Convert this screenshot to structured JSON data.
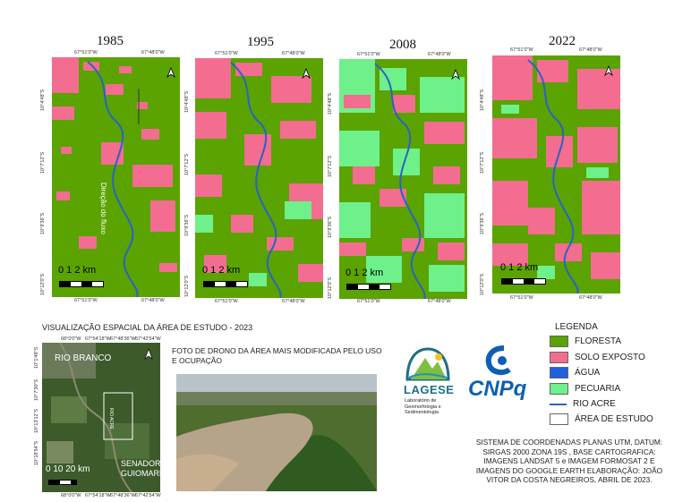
{
  "maps": [
    {
      "year": "1985",
      "coords": [
        "67°51'0\"W",
        "67°48'0\"W",
        "10°4'48\"S",
        "10°7'12\"S",
        "10°9'36\"S",
        "10°12'0\"S"
      ],
      "scale": "0  1  2 km",
      "flow_label": "Direção do fluxo"
    },
    {
      "year": "1995",
      "coords": [
        "67°51'0\"W",
        "67°48'0\"W",
        "10°4'48\"S",
        "10°7'12\"S",
        "10°9'36\"S",
        "10°12'0\"S"
      ],
      "scale": "0  1  2 km"
    },
    {
      "year": "2008",
      "coords": [
        "67°51'0\"W",
        "67°48'0\"W",
        "10°4'48\"S",
        "10°7'12\"S",
        "10°9'36\"S",
        "10°12'0\"S"
      ],
      "scale": "0  1  2 km"
    },
    {
      "year": "2022",
      "coords": [
        "67°51'0\"W",
        "67°48'0\"W",
        "10°4'48\"S",
        "10°7'12\"S",
        "10°9'36\"S",
        "10°12'0\"S"
      ],
      "scale": "0  1  2 km"
    }
  ],
  "study_area": {
    "title": "VISUALIZAÇÃO ESPACIAL DA ÁREA DE ESTUDO - 2023",
    "labels": {
      "rio_branco": "RIO BRANCO",
      "rio_acre": "RIO ACRE",
      "senador": "SENADOR GUIOMARD"
    },
    "coords_top": [
      "68°0'0\"W",
      "67°54'18\"W",
      "67°48'36\"W",
      "67°42'54\"W"
    ],
    "coords_side": [
      "10°1'48\"S",
      "10°7'30\"S",
      "10°13'12\"S",
      "10°18'54\"S"
    ],
    "scale": "0  10 20 km"
  },
  "drone": {
    "caption": "FOTO DE DRONO DA ÁREA MAIS MODIFICADA PELO USO E OCUPAÇÃO"
  },
  "logos": {
    "lagese_name": "LAGESE",
    "lagese_sub": "Laboratório de Geomorfologia e Sedimentologia",
    "cnpq": "CNPq"
  },
  "legend": {
    "title": "LEGENDA",
    "items": [
      {
        "label": "FLORESTA",
        "color": "#5aa300",
        "kind": "fill"
      },
      {
        "label": "SOLO EXPOSTO",
        "color": "#f26d8f",
        "kind": "fill"
      },
      {
        "label": "ÁGUA",
        "color": "#1f5fe0",
        "kind": "fill"
      },
      {
        "label": "PECUARIA",
        "color": "#6ef08b",
        "kind": "fill"
      },
      {
        "label": "RIO ACRE",
        "color": "#2b62c4",
        "kind": "line"
      },
      {
        "label": "ÁREA DE ESTUDO",
        "color": "#ffffff",
        "kind": "fill"
      }
    ]
  },
  "notes": "SISTEMA DE COORDENADAS PLANAS UTM, DATUM: SIRGAS 2000 ZONA 19S , BASE CARTOGRAFICA: IMAGENS LANDSAT 5 e IMAGEM FORMOSAT 2 E IMAGENS DO GOOGLE EARTH  ELABORAÇÃO: JOÃO VITOR DA COSTA NEGREIROS,  ABRIL DE 2023."
}
